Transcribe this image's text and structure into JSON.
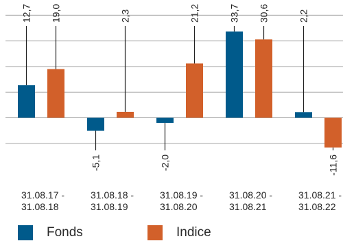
{
  "chart_data": {
    "type": "bar",
    "categories": [
      [
        "31.08.17 -",
        "31.08.18"
      ],
      [
        "31.08.18 -",
        "31.08.19"
      ],
      [
        "31.08.19 -",
        "31.08.20"
      ],
      [
        "31.08.20 -",
        "31.08.21"
      ],
      [
        "31.08.21 -",
        "31.08.22"
      ]
    ],
    "series": [
      {
        "name": "Fonds",
        "values": [
          12.7,
          -5.1,
          -2.0,
          33.7,
          2.2
        ],
        "labels": [
          "12,7",
          "-5,1",
          "-2,0",
          "33,7",
          "2,2"
        ],
        "color": "#005a8b"
      },
      {
        "name": "Indice",
        "values": [
          19.0,
          2.3,
          21.2,
          30.6,
          -11.6
        ],
        "labels": [
          "19,0",
          "2,3",
          "21,2",
          "30,6",
          "-11,6"
        ],
        "color": "#d2602a"
      }
    ],
    "title": "",
    "xlabel": "",
    "ylabel": "",
    "ylim": [
      -20,
      50
    ],
    "grid": true,
    "legend_position": "bottom-left"
  }
}
